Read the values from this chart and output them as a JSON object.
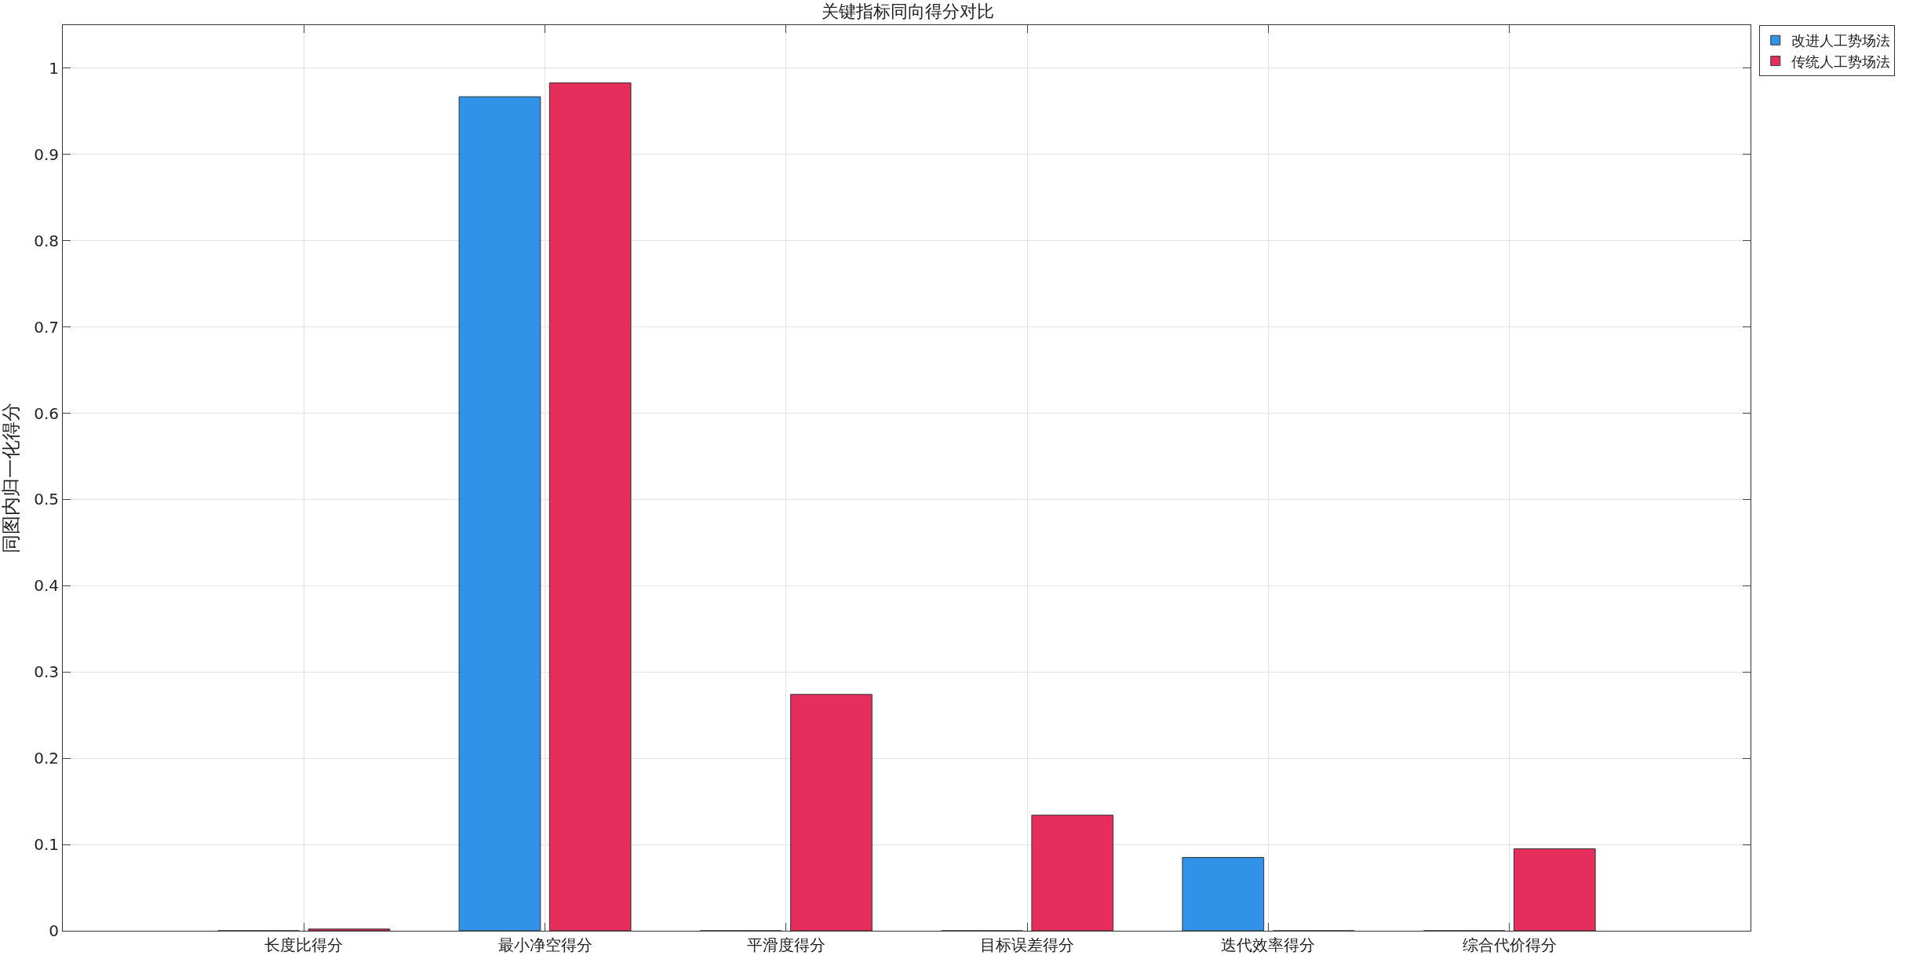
{
  "chart_data": {
    "type": "bar",
    "title": "关键指标同向得分对比",
    "ylabel": "同图内归一化得分",
    "categories": [
      "长度比得分",
      "最小净空得分",
      "平滑度得分",
      "目标误差得分",
      "迭代效率得分",
      "综合代价得分"
    ],
    "series": [
      {
        "name": "改进人工势场法",
        "color": "#3093e8",
        "values": [
          0,
          0.967,
          0,
          0,
          0.085,
          0
        ]
      },
      {
        "name": "传统人工势场法",
        "color": "#e62e5c",
        "values": [
          0.002,
          0.983,
          0.274,
          0.134,
          0,
          0.095
        ]
      }
    ],
    "ylim": [
      0,
      1.05
    ],
    "yticks": [
      0,
      0.1,
      0.2,
      0.3,
      0.4,
      0.5,
      0.6,
      0.7,
      0.8,
      0.9,
      1
    ],
    "grid": true,
    "legend": "top right"
  }
}
